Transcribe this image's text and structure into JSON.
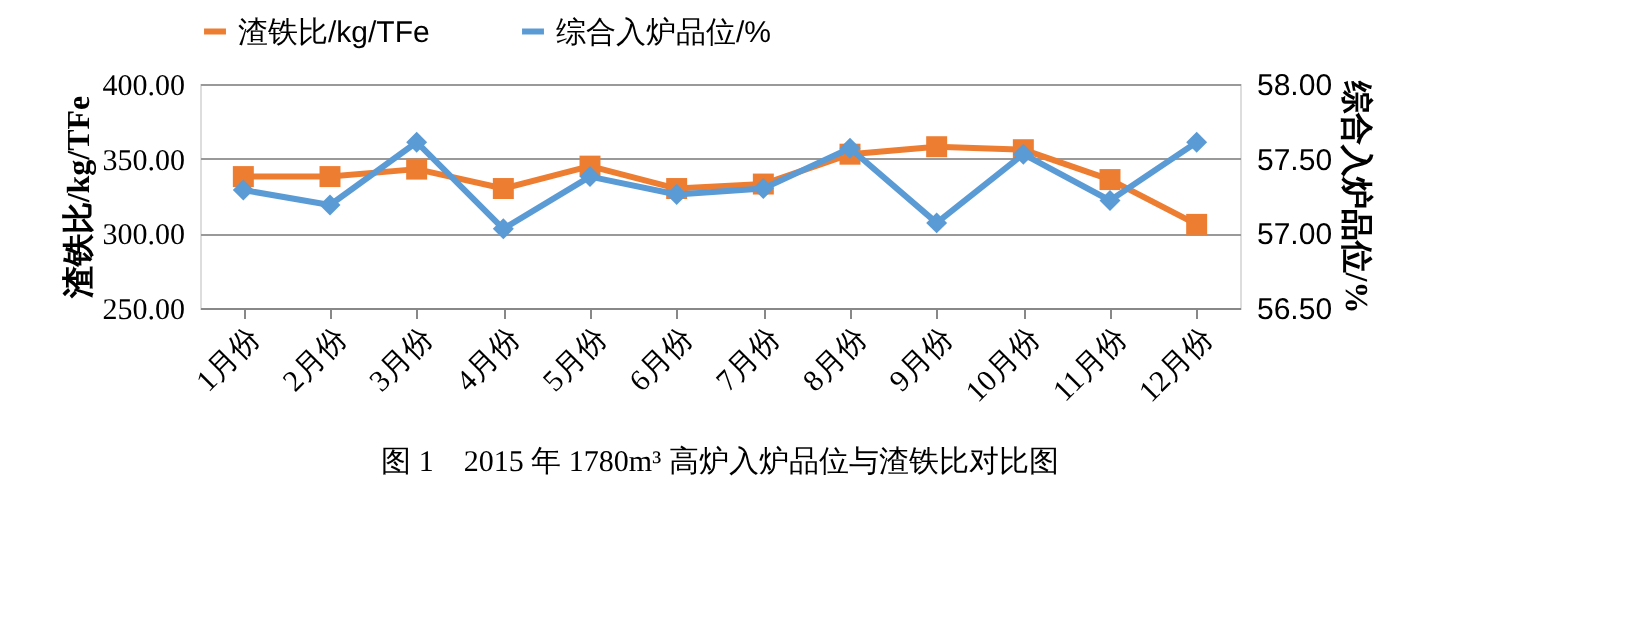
{
  "chart_data": {
    "type": "line",
    "categories": [
      "1月份",
      "2月份",
      "3月份",
      "4月份",
      "5月份",
      "6月份",
      "7月份",
      "8月份",
      "9月份",
      "10月份",
      "11月份",
      "12月份"
    ],
    "ylabel": "渣铁比/kg/TFe",
    "y2label": "综合入炉品位/%",
    "ylim": [
      250,
      400
    ],
    "yticks": [
      {
        "value": 250,
        "label": "250.00"
      },
      {
        "value": 300,
        "label": "300.00"
      },
      {
        "value": 350,
        "label": "350.00"
      },
      {
        "value": 400,
        "label": "400.00"
      }
    ],
    "y2lim": [
      56.5,
      58
    ],
    "y2ticks": [
      {
        "value": 56.5,
        "label": "56.50"
      },
      {
        "value": 57,
        "label": "57.00"
      },
      {
        "value": 57.5,
        "label": "57.50"
      },
      {
        "value": 58,
        "label": "58.00"
      }
    ],
    "grid": "y",
    "legend": "top",
    "series": [
      {
        "name": "渣铁比/kg/TFe",
        "color": "#ed7d31",
        "marker": "square",
        "values": [
          338,
          338,
          343,
          330,
          345,
          330,
          333,
          353,
          358,
          356,
          336,
          306
        ]
      },
      {
        "name": "综合入炉品位/%",
        "color": "#5b9bd5",
        "marker": "diamond",
        "axis": "y2",
        "values": [
          57.29,
          57.19,
          57.61,
          57.03,
          57.38,
          57.26,
          57.3,
          57.57,
          57.07,
          57.53,
          57.22,
          57.61
        ]
      }
    ],
    "annotations": [
      "图 1　2015 年 1780m³ 高炉入炉品位与渣铁比对比图"
    ]
  }
}
